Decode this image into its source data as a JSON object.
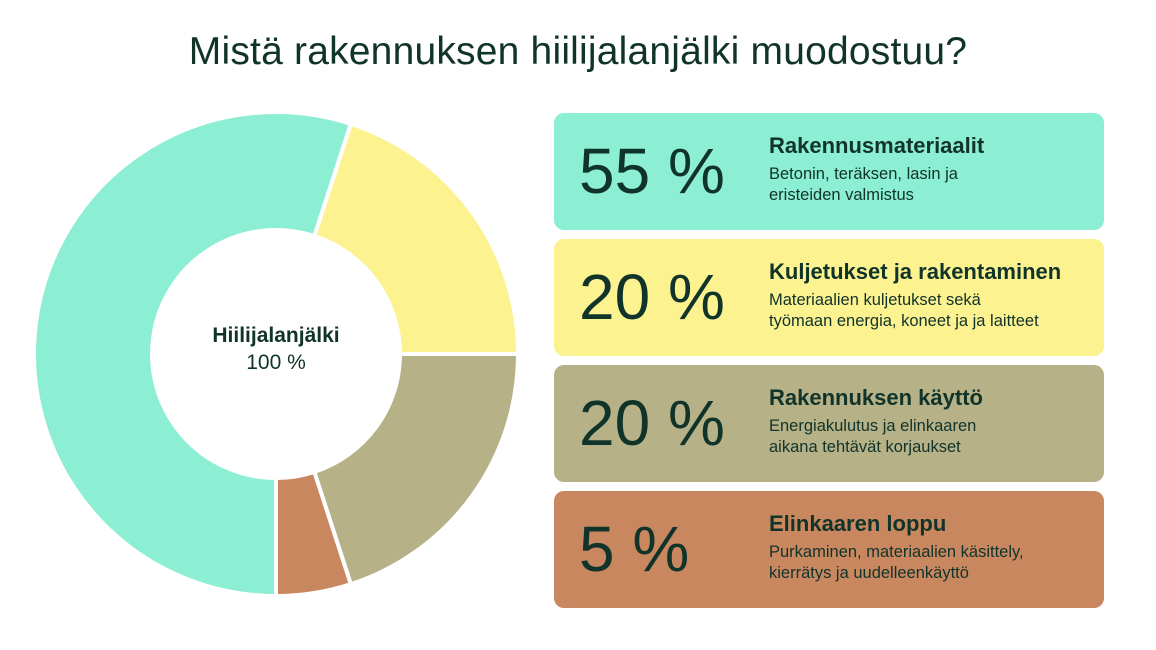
{
  "title": "Mistä rakennuksen hiilijalanjälki muodostuu?",
  "center": {
    "label": "Hiilijalanjälki",
    "value": "100 %"
  },
  "colors": {
    "materials": "#8ceed3",
    "transport": "#fcf290",
    "use": "#b7b187",
    "end": "#c9875f",
    "text": "#10332a"
  },
  "chart_data": {
    "type": "pie",
    "categories": [
      "Rakennusmateriaalit",
      "Kuljetukset ja rakentaminen",
      "Rakennuksen käyttö",
      "Elinkaaren loppu"
    ],
    "values": [
      55,
      20,
      20,
      5
    ],
    "colors": [
      "#8ceed3",
      "#fcf290",
      "#b7b187",
      "#c9875f"
    ],
    "title": "Mistä rakennuksen hiilijalanjälki muodostuu?"
  },
  "cards": [
    {
      "percent": "55 %",
      "title": "Rakennusmateriaalit",
      "line1": "Betonin, teräksen, lasin ja",
      "line2": "eristeiden valmistus"
    },
    {
      "percent": "20 %",
      "title": "Kuljetukset ja rakentaminen",
      "line1": "Materiaalien kuljetukset sekä",
      "line2": "työmaan energia, koneet ja ja laitteet"
    },
    {
      "percent": "20 %",
      "title": "Rakennuksen käyttö",
      "line1": "Energiakulutus ja elinkaaren",
      "line2": "aikana tehtävät korjaukset"
    },
    {
      "percent": "5 %",
      "title": "Elinkaaren loppu",
      "line1": "Purkaminen, materiaalien käsittely,",
      "line2": "kierrätys ja uudelleenkäyttö"
    }
  ]
}
